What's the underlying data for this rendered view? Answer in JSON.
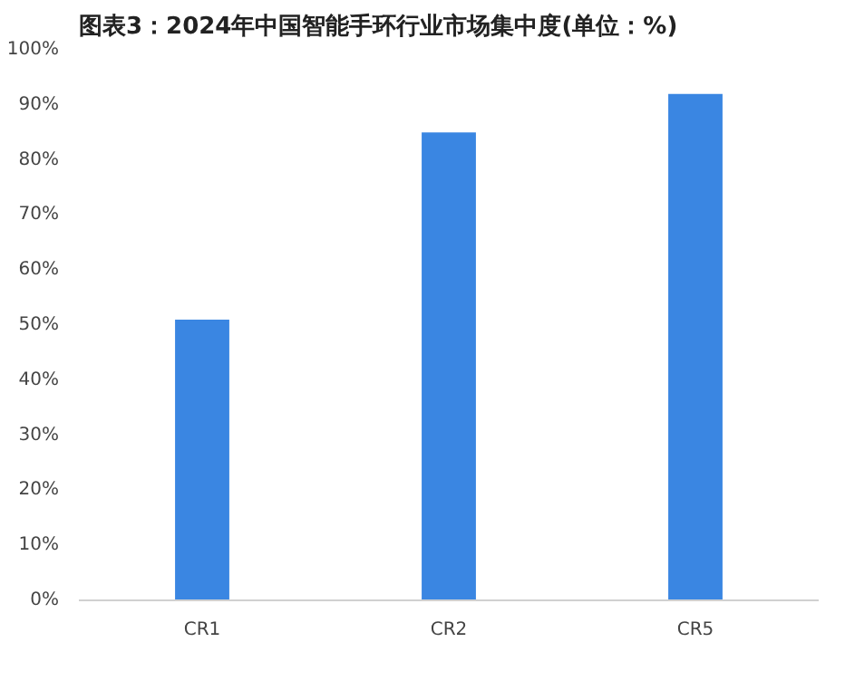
{
  "chart_data": {
    "type": "bar",
    "title": "图表3：2024年中国智能手环行业市场集中度(单位：%)",
    "categories": [
      "CR1",
      "CR2",
      "CR5"
    ],
    "values": [
      51,
      85,
      92
    ],
    "color": "#3a86e2",
    "ylim": [
      0,
      100
    ],
    "yticks": [
      {
        "value": 0,
        "label": "0%"
      },
      {
        "value": 10,
        "label": "10%"
      },
      {
        "value": 20,
        "label": "20%"
      },
      {
        "value": 30,
        "label": "30%"
      },
      {
        "value": 40,
        "label": "40%"
      },
      {
        "value": 50,
        "label": "50%"
      },
      {
        "value": 60,
        "label": "60%"
      },
      {
        "value": 70,
        "label": "70%"
      },
      {
        "value": 80,
        "label": "80%"
      },
      {
        "value": 90,
        "label": "90%"
      },
      {
        "value": 100,
        "label": "100%"
      }
    ],
    "grid": false
  }
}
